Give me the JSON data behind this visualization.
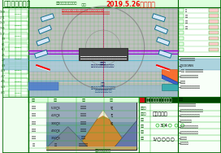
{
  "title": "歌舞伎座平面図",
  "date_stamp": "2019.5.26更新図面",
  "company": "歌舞伎座舞台株式会社",
  "play_title": "風雲児たち",
  "scene": "3-4",
  "bg_color": "#ffffff",
  "grid_green": "#22bb22",
  "grid_light": "#55cc55",
  "stage_gray": "#c0c0c0",
  "stage_blue1": "#88bbcc",
  "stage_blue2": "#99c8d8",
  "border_dark": "#006600",
  "header_green": "#ddffdd",
  "red_text": "#ee0000",
  "dark_green": "#005500",
  "panel_bg": "#f5fff5",
  "purple_line": "#9900cc",
  "cyan_line": "#00aacc",
  "teal_line": "#008888",
  "left_bg": "#eeffee",
  "right_bg": "#eeffee",
  "bottom_bg": "#f0fff0",
  "img_sky": "#8899bb",
  "img_sea": "#6688aa",
  "img_mt_gold": "#cc8833",
  "img_mt_gray": "#667788",
  "img_sand": "#ccaa77"
}
